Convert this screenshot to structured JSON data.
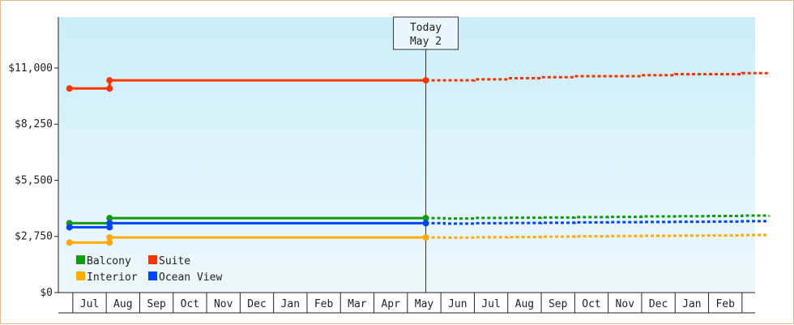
{
  "chart_data": {
    "type": "line",
    "title": "",
    "xlabel": "",
    "ylabel": "",
    "ylim": [
      0,
      13500
    ],
    "y_ticks": [
      0,
      2750,
      5500,
      8250,
      11000
    ],
    "y_tick_labels": [
      "$0",
      "$2,750",
      "$5,500",
      "$8,250",
      "$11,000"
    ],
    "x_tick_labels": [
      "Jul",
      "Aug",
      "Sep",
      "Oct",
      "Nov",
      "Dec",
      "Jan",
      "Feb",
      "Mar",
      "Apr",
      "May",
      "Jun",
      "Jul",
      "Aug",
      "Sep",
      "Oct",
      "Nov",
      "Dec",
      "Jan",
      "Feb"
    ],
    "today_marker": {
      "line1": "Today",
      "line2": "May 2",
      "position_month": 10.05
    },
    "grid": false,
    "legend_position": "bottom-left",
    "series": [
      {
        "name": "Suite",
        "color": "#ff3300",
        "values": [
          [
            -0.6,
            10000
          ],
          [
            0.6,
            10000
          ],
          [
            0.6,
            10400
          ],
          [
            10.05,
            10400
          ]
        ],
        "forecast": [
          [
            10.05,
            10400
          ],
          [
            10.6,
            10400
          ],
          [
            11.5,
            10450
          ],
          [
            12.5,
            10500
          ],
          [
            13.5,
            10550
          ],
          [
            14.5,
            10600
          ],
          [
            15.5,
            10600
          ],
          [
            16.5,
            10650
          ],
          [
            17.5,
            10700
          ],
          [
            18.5,
            10700
          ],
          [
            19.5,
            10750
          ],
          [
            20.3,
            10750
          ]
        ]
      },
      {
        "name": "Balcony",
        "color": "#119911",
        "values": [
          [
            -0.6,
            3400
          ],
          [
            0.6,
            3400
          ],
          [
            0.6,
            3650
          ],
          [
            10.05,
            3650
          ]
        ],
        "forecast": [
          [
            10.05,
            3650
          ],
          [
            10.6,
            3630
          ],
          [
            11.5,
            3660
          ],
          [
            12.5,
            3670
          ],
          [
            13.5,
            3680
          ],
          [
            14.5,
            3700
          ],
          [
            15.5,
            3710
          ],
          [
            16.5,
            3730
          ],
          [
            17.5,
            3740
          ],
          [
            18.5,
            3750
          ],
          [
            19.5,
            3770
          ],
          [
            20.3,
            3780
          ]
        ]
      },
      {
        "name": "Ocean View",
        "color": "#0044ff",
        "values": [
          [
            -0.6,
            3200
          ],
          [
            0.6,
            3200
          ],
          [
            0.6,
            3400
          ],
          [
            10.05,
            3400
          ]
        ],
        "forecast": [
          [
            10.05,
            3400
          ],
          [
            10.6,
            3380
          ],
          [
            11.5,
            3400
          ],
          [
            12.5,
            3410
          ],
          [
            13.5,
            3420
          ],
          [
            14.5,
            3440
          ],
          [
            15.5,
            3450
          ],
          [
            16.5,
            3460
          ],
          [
            17.5,
            3470
          ],
          [
            18.5,
            3480
          ],
          [
            19.5,
            3500
          ],
          [
            20.3,
            3510
          ]
        ]
      },
      {
        "name": "Interior",
        "color": "#ffaa00",
        "values": [
          [
            -0.6,
            2450
          ],
          [
            0.6,
            2450
          ],
          [
            0.6,
            2700
          ],
          [
            10.05,
            2700
          ]
        ],
        "forecast": [
          [
            10.05,
            2700
          ],
          [
            10.6,
            2690
          ],
          [
            11.5,
            2710
          ],
          [
            12.5,
            2720
          ],
          [
            13.5,
            2740
          ],
          [
            14.5,
            2760
          ],
          [
            15.5,
            2770
          ],
          [
            16.5,
            2780
          ],
          [
            17.5,
            2790
          ],
          [
            18.5,
            2800
          ],
          [
            19.5,
            2820
          ],
          [
            20.3,
            2830
          ]
        ]
      }
    ],
    "markers": {
      "Suite": [
        [
          -0.6,
          10000
        ],
        [
          0.6,
          10000
        ],
        [
          0.6,
          10400
        ],
        [
          10.05,
          10400
        ]
      ],
      "Balcony": [
        [
          -0.6,
          3400
        ],
        [
          0.6,
          3400
        ],
        [
          0.6,
          3650
        ],
        [
          10.05,
          3650
        ]
      ],
      "Ocean View": [
        [
          -0.6,
          3200
        ],
        [
          0.6,
          3200
        ],
        [
          0.6,
          3400
        ],
        [
          10.05,
          3400
        ]
      ],
      "Interior": [
        [
          -0.6,
          2450
        ],
        [
          0.6,
          2450
        ],
        [
          0.6,
          2700
        ],
        [
          10.05,
          2700
        ]
      ]
    },
    "legend": [
      {
        "name": "Balcony",
        "color": "#119911"
      },
      {
        "name": "Suite",
        "color": "#ff3300"
      },
      {
        "name": "Interior",
        "color": "#ffaa00"
      },
      {
        "name": "Ocean View",
        "color": "#0044ff"
      }
    ],
    "colors": {
      "plot_bg_top": "#cceef9",
      "plot_bg_bottom": "#eef8fc",
      "axis": "#222222",
      "frame": "#e8b888"
    }
  }
}
